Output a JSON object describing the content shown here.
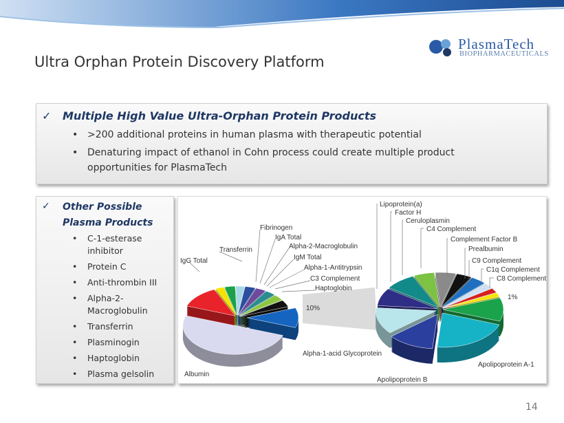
{
  "header": {
    "title": "Ultra Orphan Protein Discovery Platform",
    "logo_name": "PlasmaTech",
    "logo_sub": "BIOPHARMACEUTICALS"
  },
  "box1": {
    "heading": "Multiple High Value Ultra-Orphan Protein Products",
    "bullets": [
      ">200 additional proteins in human plasma with therapeutic potential",
      "Denaturing impact of ethanol in Cohn process could create multiple product opportunities for PlasmaTech"
    ]
  },
  "box2": {
    "heading": "Other Possible Plasma Products",
    "bullets": [
      "C-1-esterase inhibitor",
      "Protein C",
      "Anti-thrombin III",
      "Alpha-2-Macroglobulin",
      "Transferrin",
      "Plasminogin",
      "Haptoglobin",
      "Plasma gelsolin"
    ]
  },
  "figure": {
    "left_labels": [
      "IgG Total",
      "Transferrin",
      "Fibrinogen",
      "IgA Total",
      "Alpha-2-Macroglobulin",
      "IgM Total",
      "Alpha-1-Antitrypsin",
      "C3 Complement",
      "Haptoglobin",
      "10%",
      "Albumin"
    ],
    "right_labels": [
      "Lipoprotein(a)",
      "Factor H",
      "Ceruloplasmin",
      "C4 Complement",
      "Complement Factor B",
      "Prealbumin",
      "C9 Complement",
      "C1q Complement",
      "C8 Complement",
      "1%",
      "Apolipoprotein A-1",
      "Apolipoprotein B",
      "Alpha-1-acid Glycoprotein"
    ]
  },
  "footer": {
    "page": "14"
  }
}
